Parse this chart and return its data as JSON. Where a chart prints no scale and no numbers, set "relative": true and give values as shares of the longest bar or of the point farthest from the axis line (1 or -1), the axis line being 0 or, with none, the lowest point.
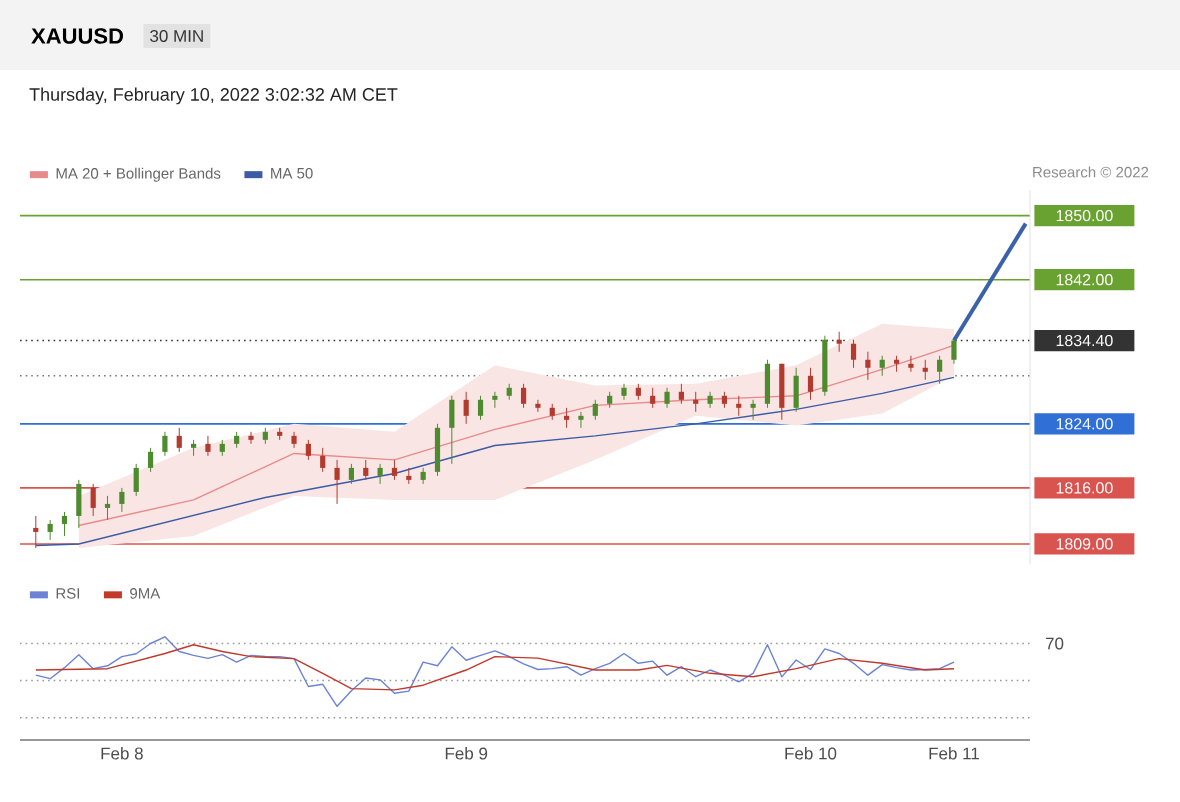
{
  "chart_data": [
    {
      "type": "candlestick",
      "title": "XAUUSD",
      "subtitle": "30 MIN",
      "annotations": [
        "Thursday, February 10, 2022 3:02:32 AM CET",
        "Research © 2022"
      ],
      "categories": [
        null,
        null,
        null,
        null,
        null,
        null,
        null,
        null,
        null,
        null,
        null,
        null,
        null,
        null,
        null,
        null,
        null,
        null,
        null,
        null,
        null,
        null,
        null,
        null,
        null,
        null,
        null,
        null,
        null,
        null,
        null,
        null,
        null,
        null,
        null,
        null,
        null,
        null,
        null,
        null,
        null,
        null,
        null,
        null,
        null,
        null,
        null,
        null,
        null,
        null,
        null,
        null,
        null,
        null,
        null,
        null,
        null,
        null,
        null,
        null,
        null,
        null,
        null,
        null,
        null,
        null,
        null,
        null,
        null,
        null
      ],
      "ohlc": [
        [
          1811,
          1812.5,
          1808.5,
          1810.5
        ],
        [
          1810.5,
          1812,
          1809.5,
          1811.5
        ],
        [
          1811.5,
          1813,
          1810,
          1812.5
        ],
        [
          1812.5,
          1817,
          1811,
          1816.5
        ],
        [
          1816,
          1816.5,
          1812.5,
          1813.5
        ],
        [
          1813.5,
          1815,
          1812,
          1814
        ],
        [
          1814,
          1816,
          1813,
          1815.5
        ],
        [
          1815.5,
          1819,
          1815,
          1818.5
        ],
        [
          1818.5,
          1821,
          1818,
          1820.5
        ],
        [
          1820.5,
          1823,
          1820,
          1822.5
        ],
        [
          1822.5,
          1823.5,
          1820.5,
          1821
        ],
        [
          1821,
          1822,
          1820,
          1821.5
        ],
        [
          1821.5,
          1822.5,
          1820,
          1820.5
        ],
        [
          1820.5,
          1822,
          1820,
          1821.5
        ],
        [
          1821.5,
          1823,
          1821,
          1822.5
        ],
        [
          1822.5,
          1823,
          1821.5,
          1822
        ],
        [
          1822,
          1823.5,
          1821.5,
          1823
        ],
        [
          1823,
          1823.5,
          1822,
          1822.5
        ],
        [
          1822.5,
          1823,
          1821,
          1821.5
        ],
        [
          1821.5,
          1822,
          1819.5,
          1820
        ],
        [
          1820,
          1821,
          1818,
          1818.5
        ],
        [
          1818.5,
          1819.5,
          1814,
          1817
        ],
        [
          1817,
          1819,
          1816.5,
          1818.5
        ],
        [
          1818.5,
          1819.5,
          1817,
          1817.5
        ],
        [
          1817.5,
          1819,
          1816.5,
          1818.5
        ],
        [
          1818.5,
          1819.5,
          1817,
          1817.5
        ],
        [
          1817.5,
          1818.5,
          1816.5,
          1817
        ],
        [
          1817,
          1818.5,
          1816.5,
          1818
        ],
        [
          1818,
          1824,
          1817.5,
          1823.5
        ],
        [
          1823.5,
          1827.5,
          1819,
          1827
        ],
        [
          1827,
          1828,
          1824,
          1825
        ],
        [
          1825,
          1827.5,
          1824.5,
          1827
        ],
        [
          1827,
          1828,
          1826,
          1827.5
        ],
        [
          1827.5,
          1829,
          1827,
          1828.5
        ],
        [
          1828.5,
          1829,
          1826,
          1826.5
        ],
        [
          1826.5,
          1827,
          1825.5,
          1826
        ],
        [
          1826,
          1826.5,
          1824.5,
          1825
        ],
        [
          1825,
          1826,
          1823.5,
          1824.5
        ],
        [
          1824.5,
          1825.5,
          1823.5,
          1825
        ],
        [
          1825,
          1827,
          1824.5,
          1826.5
        ],
        [
          1826.5,
          1828,
          1826,
          1827.5
        ],
        [
          1827.5,
          1829,
          1827,
          1828.5
        ],
        [
          1828.5,
          1829,
          1827,
          1827.5
        ],
        [
          1827.5,
          1828.5,
          1826,
          1826.5
        ],
        [
          1826.5,
          1828.5,
          1826,
          1828
        ],
        [
          1828,
          1829,
          1826.5,
          1827
        ],
        [
          1827,
          1828,
          1825.5,
          1826.5
        ],
        [
          1826.5,
          1828,
          1826,
          1827.5
        ],
        [
          1827.5,
          1828,
          1826,
          1826.5
        ],
        [
          1826.5,
          1827.5,
          1825,
          1826
        ],
        [
          1826,
          1827,
          1824.5,
          1826.5
        ],
        [
          1826.5,
          1832,
          1826,
          1831.5
        ],
        [
          1831.5,
          1831.5,
          1824.5,
          1826
        ],
        [
          1826,
          1831,
          1825.5,
          1830
        ],
        [
          1830,
          1831,
          1827,
          1828
        ],
        [
          1828,
          1835,
          1827.5,
          1834.5
        ],
        [
          1834.5,
          1835.5,
          1833,
          1834
        ],
        [
          1834,
          1834.5,
          1831,
          1832
        ],
        [
          1832,
          1833,
          1829.5,
          1831
        ],
        [
          1831,
          1832.5,
          1830,
          1832
        ],
        [
          1832,
          1832.5,
          1830.5,
          1831.5
        ],
        [
          1831.5,
          1832.5,
          1830.5,
          1831
        ],
        [
          1831,
          1832,
          1829.5,
          1830.5
        ],
        [
          1830.5,
          1832.5,
          1829,
          1832
        ],
        [
          1832,
          1834.5,
          1831.5,
          1834.4
        ],
        null,
        null,
        null,
        null,
        null
      ],
      "series": [
        {
          "name": "MA 20 + Bollinger Bands",
          "type": "line",
          "color": "#e88a8a",
          "values": [
            null,
            null,
            null,
            1811.3,
            null,
            null,
            null,
            null,
            null,
            null,
            null,
            1814.5,
            null,
            null,
            null,
            null,
            null,
            null,
            1820.3,
            null,
            null,
            null,
            null,
            null,
            null,
            1819.5,
            null,
            null,
            null,
            null,
            null,
            null,
            1823.3,
            null,
            null,
            null,
            null,
            null,
            null,
            1826.3,
            null,
            null,
            null,
            null,
            null,
            null,
            1827,
            null,
            null,
            null,
            null,
            null,
            null,
            1827.5,
            null,
            null,
            null,
            null,
            null,
            1830.8,
            null,
            null,
            null,
            null,
            1833.8,
            null,
            null,
            null,
            null,
            null
          ],
          "lower": [
            null,
            null,
            null,
            1808.5,
            null,
            null,
            null,
            null,
            null,
            null,
            null,
            1810,
            null,
            null,
            null,
            null,
            null,
            null,
            1815,
            null,
            null,
            null,
            null,
            null,
            null,
            1814.5,
            null,
            null,
            null,
            null,
            null,
            null,
            1814.5,
            null,
            null,
            null,
            null,
            null,
            null,
            1819.5,
            null,
            null,
            null,
            null,
            null,
            null,
            1825,
            null,
            null,
            null,
            null,
            null,
            null,
            1823.8,
            null,
            null,
            null,
            null,
            null,
            1825.3,
            null,
            null,
            null,
            null,
            1830,
            null,
            null,
            null,
            null,
            null
          ],
          "upper": [
            null,
            null,
            null,
            1815,
            null,
            null,
            null,
            null,
            null,
            null,
            null,
            1821,
            null,
            null,
            null,
            null,
            null,
            null,
            1824,
            null,
            null,
            null,
            null,
            null,
            null,
            1823,
            null,
            null,
            null,
            null,
            null,
            null,
            1831.3,
            null,
            null,
            null,
            null,
            null,
            null,
            1828.8,
            null,
            null,
            null,
            null,
            null,
            null,
            1829,
            null,
            null,
            null,
            null,
            null,
            null,
            1831.3,
            null,
            null,
            null,
            null,
            null,
            1836.5,
            null,
            null,
            null,
            null,
            1835.8,
            null,
            null,
            null,
            null,
            null
          ]
        },
        {
          "name": "MA 50",
          "type": "line",
          "color": "#3b5ba5",
          "values": [
            1808.8,
            null,
            null,
            1809,
            null,
            null,
            null,
            null,
            null,
            null,
            null,
            null,
            null,
            null,
            null,
            null,
            1814.8,
            null,
            null,
            null,
            null,
            null,
            null,
            null,
            null,
            1817.8,
            null,
            null,
            null,
            null,
            null,
            null,
            1821.3,
            null,
            null,
            null,
            null,
            null,
            null,
            1822.5,
            null,
            null,
            null,
            null,
            null,
            null,
            1824,
            null,
            null,
            null,
            null,
            null,
            null,
            1825.8,
            null,
            null,
            null,
            null,
            null,
            1827.8,
            null,
            null,
            null,
            null,
            1829.8,
            null,
            null,
            null,
            null,
            null
          ]
        },
        {
          "type": "line",
          "color": "#3a62a8",
          "values": [
            null,
            null,
            null,
            null,
            null,
            null,
            null,
            null,
            null,
            null,
            null,
            null,
            null,
            null,
            null,
            null,
            null,
            null,
            null,
            null,
            null,
            null,
            null,
            null,
            null,
            null,
            null,
            null,
            null,
            null,
            null,
            null,
            null,
            null,
            null,
            null,
            null,
            null,
            null,
            null,
            null,
            null,
            null,
            null,
            null,
            null,
            null,
            null,
            null,
            null,
            null,
            null,
            null,
            null,
            null,
            null,
            null,
            null,
            null,
            null,
            null,
            null,
            null,
            null,
            1834.4,
            null,
            null,
            null,
            null,
            1849
          ]
        }
      ],
      "ref_lines": [
        {
          "axis": "y",
          "value": 1850,
          "color": "#6aa232"
        },
        {
          "axis": "y",
          "value": 1842,
          "color": "#6aa232"
        },
        {
          "axis": "y",
          "value": 1834.4,
          "color": "#333333",
          "line_style": "dotted"
        },
        {
          "axis": "y",
          "value": 1830,
          "color": "#777777",
          "line_style": "dotted"
        },
        {
          "axis": "y",
          "value": 1824,
          "color": "#2f6fd6"
        },
        {
          "axis": "y",
          "value": 1816,
          "color": "#d9534f"
        },
        {
          "axis": "y",
          "value": 1809,
          "color": "#d9534f"
        }
      ],
      "ylim": [
        1806.5,
        1853.2
      ],
      "yticks": [
        {
          "value": 1809,
          "label": "1809.00"
        },
        {
          "value": 1816,
          "label": "1816.00"
        },
        {
          "value": 1824,
          "label": "1824.00"
        },
        {
          "value": 1834.4,
          "label": "1834.40"
        },
        {
          "value": 1842,
          "label": "1842.00"
        },
        {
          "value": 1850,
          "label": "1850.00"
        }
      ],
      "tick_labels": "y",
      "legend": "top left"
    },
    {
      "type": "line",
      "relative": true,
      "categories": [
        null,
        null,
        null,
        null,
        null,
        null,
        "Feb 8",
        null,
        null,
        null,
        null,
        null,
        null,
        null,
        null,
        null,
        null,
        null,
        null,
        null,
        null,
        null,
        null,
        null,
        null,
        null,
        null,
        null,
        null,
        null,
        "Feb 9",
        null,
        null,
        null,
        null,
        null,
        null,
        null,
        null,
        null,
        null,
        null,
        null,
        null,
        null,
        null,
        null,
        null,
        null,
        null,
        null,
        null,
        null,
        null,
        "Feb 10",
        null,
        null,
        null,
        null,
        null,
        null,
        null,
        null,
        null,
        "Feb 11",
        null,
        null,
        null,
        null,
        null
      ],
      "series": [
        {
          "name": "RSI",
          "color": "#6b83d6",
          "values": [
            0.629,
            0.594,
            0.701,
            0.826,
            0.691,
            0.719,
            0.808,
            0.836,
            0.935,
            1,
            0.858,
            0.82,
            0.791,
            0.827,
            0.755,
            0.82,
            0.809,
            0.808,
            0.788,
            0.518,
            0.54,
            0.326,
            0.477,
            0.601,
            0.583,
            0.453,
            0.473,
            0.755,
            0.719,
            0.903,
            0.773,
            0.82,
            0.863,
            0.809,
            0.737,
            0.683,
            0.692,
            0.71,
            0.629,
            0.691,
            0.743,
            0.838,
            0.743,
            0.764,
            0.628,
            0.71,
            0.613,
            0.678,
            0.629,
            0.563,
            0.646,
            0.923,
            0.612,
            0.775,
            0.683,
            0.883,
            0.838,
            0.743,
            0.628,
            0.73,
            0.701,
            0.678,
            0.683,
            0.691,
            0.755,
            null,
            null,
            null,
            null,
            null
          ]
        },
        {
          "name": "9MA",
          "color": "#c0392b",
          "values": [
            0.678,
            null,
            null,
            null,
            null,
            0.691,
            null,
            null,
            null,
            0.838,
            null,
            0.923,
            null,
            0.858,
            null,
            0.808,
            null,
            null,
            0.788,
            null,
            0.646,
            null,
            0.498,
            null,
            null,
            0.486,
            null,
            0.531,
            null,
            null,
            0.678,
            null,
            0.808,
            null,
            null,
            0.793,
            null,
            null,
            null,
            0.678,
            null,
            null,
            0.678,
            null,
            0.723,
            null,
            null,
            0.646,
            null,
            null,
            0.613,
            null,
            null,
            0.691,
            null,
            null,
            0.788,
            null,
            null,
            0.743,
            null,
            null,
            0.678,
            null,
            0.691,
            null,
            null,
            null,
            null,
            null
          ]
        }
      ],
      "ref_lines": [
        {
          "axis": "y",
          "value": 0.935,
          "color": "#999999",
          "line_style": "dotted"
        },
        {
          "axis": "y",
          "value": 0.576,
          "color": "#999999",
          "line_style": "dotted"
        },
        {
          "axis": "y",
          "value": 0.216,
          "color": "#999999",
          "line_style": "dotted"
        }
      ],
      "annotations": [
        "70"
      ],
      "legend": "top left"
    }
  ]
}
